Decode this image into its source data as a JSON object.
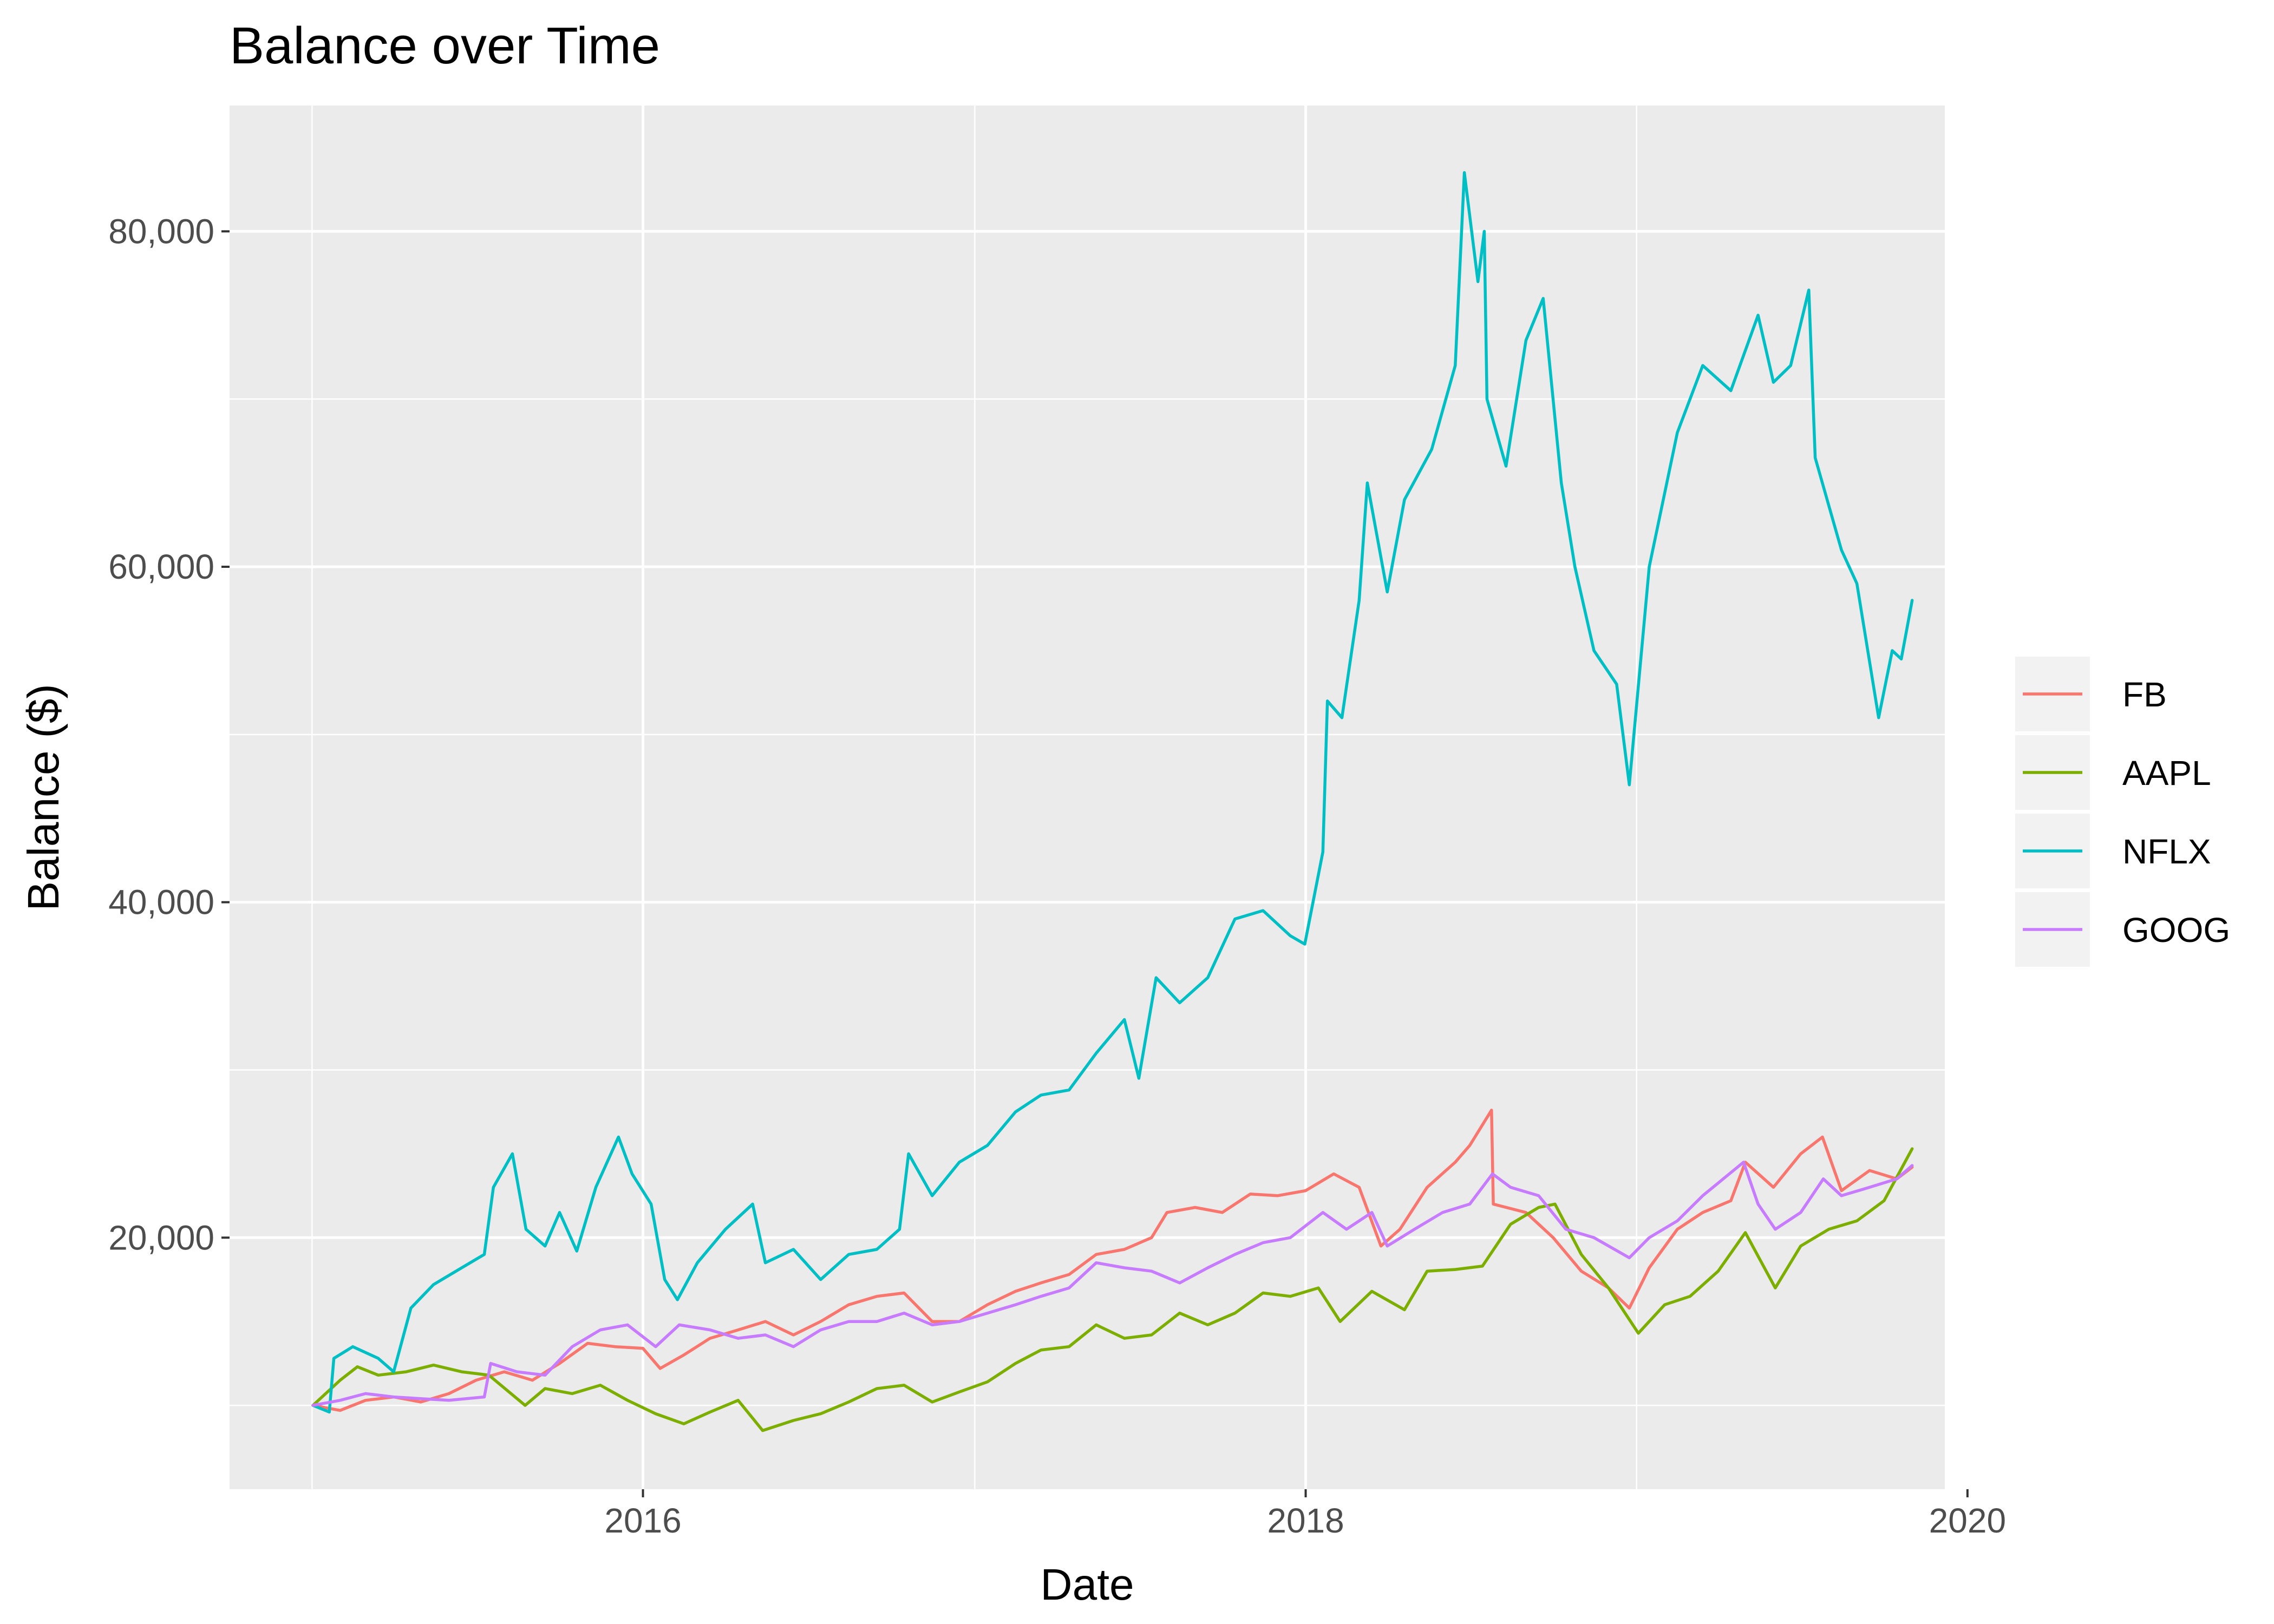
{
  "chart_data": {
    "type": "line",
    "title": "Balance over Time",
    "xlabel": "Date",
    "ylabel": "Balance ($)",
    "xlim": [
      "2014-10-02",
      "2019-12-07"
    ],
    "ylim": [
      5000,
      87500
    ],
    "x_ticks": [
      "2016-01-01",
      "2018-01-01",
      "2020-01-01"
    ],
    "x_tick_labels": [
      "2016",
      "2018",
      "2020"
    ],
    "y_ticks": [
      20000,
      40000,
      60000,
      80000
    ],
    "y_tick_labels": [
      "20,000",
      "40,000",
      "60,000",
      "80,000"
    ],
    "grid": true,
    "legend_position": "right",
    "series": [
      {
        "name": "FB",
        "color": "#F8766D",
        "points": [
          [
            "2015-01-02",
            10000
          ],
          [
            "2015-02-01",
            9700
          ],
          [
            "2015-03-01",
            10300
          ],
          [
            "2015-04-01",
            10500
          ],
          [
            "2015-05-01",
            10200
          ],
          [
            "2015-06-01",
            10700
          ],
          [
            "2015-07-01",
            11500
          ],
          [
            "2015-08-01",
            12000
          ],
          [
            "2015-09-01",
            11500
          ],
          [
            "2015-10-01",
            12500
          ],
          [
            "2015-11-01",
            13700
          ],
          [
            "2015-12-01",
            13500
          ],
          [
            "2016-01-01",
            13400
          ],
          [
            "2016-01-20",
            12200
          ],
          [
            "2016-02-15",
            13000
          ],
          [
            "2016-03-15",
            14000
          ],
          [
            "2016-04-15",
            14500
          ],
          [
            "2016-05-15",
            15000
          ],
          [
            "2016-06-15",
            14200
          ],
          [
            "2016-07-15",
            15000
          ],
          [
            "2016-08-15",
            16000
          ],
          [
            "2016-09-15",
            16500
          ],
          [
            "2016-10-15",
            16700
          ],
          [
            "2016-11-15",
            15000
          ],
          [
            "2016-12-15",
            15000
          ],
          [
            "2017-01-15",
            16000
          ],
          [
            "2017-02-15",
            16800
          ],
          [
            "2017-03-15",
            17300
          ],
          [
            "2017-04-15",
            17800
          ],
          [
            "2017-05-15",
            19000
          ],
          [
            "2017-06-15",
            19300
          ],
          [
            "2017-07-15",
            20000
          ],
          [
            "2017-08-01",
            21500
          ],
          [
            "2017-09-01",
            21800
          ],
          [
            "2017-10-01",
            21500
          ],
          [
            "2017-11-01",
            22600
          ],
          [
            "2017-12-01",
            22500
          ],
          [
            "2018-01-01",
            22800
          ],
          [
            "2018-02-01",
            23800
          ],
          [
            "2018-03-01",
            23000
          ],
          [
            "2018-03-25",
            19500
          ],
          [
            "2018-04-15",
            20500
          ],
          [
            "2018-05-15",
            23000
          ],
          [
            "2018-06-15",
            24500
          ],
          [
            "2018-07-01",
            25500
          ],
          [
            "2018-07-25",
            27600
          ],
          [
            "2018-07-27",
            22000
          ],
          [
            "2018-09-01",
            21500
          ],
          [
            "2018-10-01",
            20000
          ],
          [
            "2018-11-01",
            18000
          ],
          [
            "2018-12-01",
            17000
          ],
          [
            "2018-12-24",
            15800
          ],
          [
            "2019-01-15",
            18200
          ],
          [
            "2019-02-15",
            20500
          ],
          [
            "2019-03-15",
            21500
          ],
          [
            "2019-04-15",
            22200
          ],
          [
            "2019-05-01",
            24500
          ],
          [
            "2019-06-01",
            23000
          ],
          [
            "2019-07-01",
            25000
          ],
          [
            "2019-07-25",
            26000
          ],
          [
            "2019-08-15",
            22800
          ],
          [
            "2019-09-15",
            24000
          ],
          [
            "2019-10-15",
            23500
          ],
          [
            "2019-11-01",
            24200
          ]
        ]
      },
      {
        "name": "AAPL",
        "color": "#7CAE00",
        "points": [
          [
            "2015-01-02",
            10000
          ],
          [
            "2015-02-01",
            11500
          ],
          [
            "2015-02-20",
            12300
          ],
          [
            "2015-03-15",
            11800
          ],
          [
            "2015-04-15",
            12000
          ],
          [
            "2015-05-15",
            12400
          ],
          [
            "2015-06-15",
            12000
          ],
          [
            "2015-07-15",
            11800
          ],
          [
            "2015-08-24",
            10000
          ],
          [
            "2015-09-15",
            11000
          ],
          [
            "2015-10-15",
            10700
          ],
          [
            "2015-11-15",
            11200
          ],
          [
            "2015-12-15",
            10300
          ],
          [
            "2016-01-15",
            9500
          ],
          [
            "2016-02-15",
            8900
          ],
          [
            "2016-03-15",
            9600
          ],
          [
            "2016-04-15",
            10300
          ],
          [
            "2016-05-12",
            8500
          ],
          [
            "2016-06-15",
            9100
          ],
          [
            "2016-07-15",
            9500
          ],
          [
            "2016-08-15",
            10200
          ],
          [
            "2016-09-15",
            11000
          ],
          [
            "2016-10-15",
            11200
          ],
          [
            "2016-11-15",
            10200
          ],
          [
            "2016-12-15",
            10800
          ],
          [
            "2017-01-15",
            11400
          ],
          [
            "2017-02-15",
            12500
          ],
          [
            "2017-03-15",
            13300
          ],
          [
            "2017-04-15",
            13500
          ],
          [
            "2017-05-15",
            14800
          ],
          [
            "2017-06-15",
            14000
          ],
          [
            "2017-07-15",
            14200
          ],
          [
            "2017-08-15",
            15500
          ],
          [
            "2017-09-15",
            14800
          ],
          [
            "2017-10-15",
            15500
          ],
          [
            "2017-11-15",
            16700
          ],
          [
            "2017-12-15",
            16500
          ],
          [
            "2018-01-15",
            17000
          ],
          [
            "2018-02-08",
            15000
          ],
          [
            "2018-03-15",
            16800
          ],
          [
            "2018-04-20",
            15700
          ],
          [
            "2018-05-15",
            18000
          ],
          [
            "2018-06-15",
            18100
          ],
          [
            "2018-07-15",
            18300
          ],
          [
            "2018-08-15",
            20800
          ],
          [
            "2018-09-15",
            21800
          ],
          [
            "2018-10-03",
            22000
          ],
          [
            "2018-11-01",
            19000
          ],
          [
            "2018-12-01",
            17000
          ],
          [
            "2019-01-03",
            14300
          ],
          [
            "2019-02-01",
            16000
          ],
          [
            "2019-03-01",
            16500
          ],
          [
            "2019-04-01",
            18000
          ],
          [
            "2019-05-01",
            20300
          ],
          [
            "2019-06-03",
            17000
          ],
          [
            "2019-07-01",
            19500
          ],
          [
            "2019-08-01",
            20500
          ],
          [
            "2019-09-01",
            21000
          ],
          [
            "2019-10-01",
            22200
          ],
          [
            "2019-11-01",
            25300
          ]
        ]
      },
      {
        "name": "NFLX",
        "color": "#00BFC4",
        "points": [
          [
            "2015-01-02",
            10000
          ],
          [
            "2015-01-20",
            9600
          ],
          [
            "2015-01-25",
            12800
          ],
          [
            "2015-02-15",
            13500
          ],
          [
            "2015-03-15",
            12800
          ],
          [
            "2015-04-01",
            12000
          ],
          [
            "2015-04-20",
            15800
          ],
          [
            "2015-05-15",
            17200
          ],
          [
            "2015-06-15",
            18200
          ],
          [
            "2015-07-10",
            19000
          ],
          [
            "2015-07-20",
            23000
          ],
          [
            "2015-08-10",
            25000
          ],
          [
            "2015-08-25",
            20500
          ],
          [
            "2015-09-15",
            19500
          ],
          [
            "2015-10-01",
            21500
          ],
          [
            "2015-10-20",
            19200
          ],
          [
            "2015-11-10",
            23000
          ],
          [
            "2015-12-05",
            26000
          ],
          [
            "2015-12-20",
            23800
          ],
          [
            "2016-01-10",
            22000
          ],
          [
            "2016-01-25",
            17500
          ],
          [
            "2016-02-08",
            16300
          ],
          [
            "2016-03-01",
            18500
          ],
          [
            "2016-04-01",
            20500
          ],
          [
            "2016-05-01",
            22000
          ],
          [
            "2016-05-15",
            18500
          ],
          [
            "2016-06-15",
            19300
          ],
          [
            "2016-07-15",
            17500
          ],
          [
            "2016-08-15",
            19000
          ],
          [
            "2016-09-15",
            19300
          ],
          [
            "2016-10-10",
            20500
          ],
          [
            "2016-10-20",
            25000
          ],
          [
            "2016-11-15",
            22500
          ],
          [
            "2016-12-15",
            24500
          ],
          [
            "2017-01-15",
            25500
          ],
          [
            "2017-02-15",
            27500
          ],
          [
            "2017-03-15",
            28500
          ],
          [
            "2017-04-15",
            28800
          ],
          [
            "2017-05-15",
            31000
          ],
          [
            "2017-06-15",
            33000
          ],
          [
            "2017-07-01",
            29500
          ],
          [
            "2017-07-20",
            35500
          ],
          [
            "2017-08-15",
            34000
          ],
          [
            "2017-09-15",
            35500
          ],
          [
            "2017-10-15",
            39000
          ],
          [
            "2017-11-15",
            39500
          ],
          [
            "2017-12-15",
            38000
          ],
          [
            "2017-12-31",
            37500
          ],
          [
            "2018-01-20",
            43000
          ],
          [
            "2018-01-25",
            52000
          ],
          [
            "2018-02-10",
            51000
          ],
          [
            "2018-03-01",
            58000
          ],
          [
            "2018-03-10",
            65000
          ],
          [
            "2018-04-01",
            58500
          ],
          [
            "2018-04-20",
            64000
          ],
          [
            "2018-05-20",
            67000
          ],
          [
            "2018-06-15",
            72000
          ],
          [
            "2018-06-25",
            83500
          ],
          [
            "2018-07-10",
            77000
          ],
          [
            "2018-07-17",
            80000
          ],
          [
            "2018-07-20",
            70000
          ],
          [
            "2018-08-10",
            66000
          ],
          [
            "2018-09-01",
            73500
          ],
          [
            "2018-09-20",
            76000
          ],
          [
            "2018-10-10",
            65000
          ],
          [
            "2018-10-25",
            60000
          ],
          [
            "2018-11-15",
            55000
          ],
          [
            "2018-12-10",
            53000
          ],
          [
            "2018-12-24",
            47000
          ],
          [
            "2019-01-15",
            60000
          ],
          [
            "2019-02-15",
            68000
          ],
          [
            "2019-03-15",
            72000
          ],
          [
            "2019-04-15",
            70500
          ],
          [
            "2019-05-15",
            75000
          ],
          [
            "2019-06-01",
            71000
          ],
          [
            "2019-06-20",
            72000
          ],
          [
            "2019-07-10",
            76500
          ],
          [
            "2019-07-17",
            66500
          ],
          [
            "2019-08-15",
            61000
          ],
          [
            "2019-09-01",
            59000
          ],
          [
            "2019-09-25",
            51000
          ],
          [
            "2019-10-10",
            55000
          ],
          [
            "2019-10-20",
            54500
          ],
          [
            "2019-11-01",
            58000
          ]
        ]
      },
      {
        "name": "GOOG",
        "color": "#C77CFF",
        "points": [
          [
            "2015-01-02",
            10000
          ],
          [
            "2015-02-01",
            10300
          ],
          [
            "2015-03-01",
            10700
          ],
          [
            "2015-04-01",
            10500
          ],
          [
            "2015-05-01",
            10400
          ],
          [
            "2015-06-01",
            10300
          ],
          [
            "2015-07-10",
            10500
          ],
          [
            "2015-07-17",
            12500
          ],
          [
            "2015-08-15",
            12000
          ],
          [
            "2015-09-15",
            11800
          ],
          [
            "2015-10-15",
            13500
          ],
          [
            "2015-11-15",
            14500
          ],
          [
            "2015-12-15",
            14800
          ],
          [
            "2016-01-15",
            13500
          ],
          [
            "2016-02-10",
            14800
          ],
          [
            "2016-03-15",
            14500
          ],
          [
            "2016-04-15",
            14000
          ],
          [
            "2016-05-15",
            14200
          ],
          [
            "2016-06-15",
            13500
          ],
          [
            "2016-07-15",
            14500
          ],
          [
            "2016-08-15",
            15000
          ],
          [
            "2016-09-15",
            15000
          ],
          [
            "2016-10-15",
            15500
          ],
          [
            "2016-11-15",
            14800
          ],
          [
            "2016-12-15",
            15000
          ],
          [
            "2017-01-15",
            15500
          ],
          [
            "2017-02-15",
            16000
          ],
          [
            "2017-03-15",
            16500
          ],
          [
            "2017-04-15",
            17000
          ],
          [
            "2017-05-15",
            18500
          ],
          [
            "2017-06-15",
            18200
          ],
          [
            "2017-07-15",
            18000
          ],
          [
            "2017-08-15",
            17300
          ],
          [
            "2017-09-15",
            18200
          ],
          [
            "2017-10-15",
            19000
          ],
          [
            "2017-11-15",
            19700
          ],
          [
            "2017-12-15",
            20000
          ],
          [
            "2018-01-20",
            21500
          ],
          [
            "2018-02-15",
            20500
          ],
          [
            "2018-03-15",
            21500
          ],
          [
            "2018-04-01",
            19500
          ],
          [
            "2018-05-01",
            20500
          ],
          [
            "2018-06-01",
            21500
          ],
          [
            "2018-07-01",
            22000
          ],
          [
            "2018-07-26",
            23800
          ],
          [
            "2018-08-15",
            23000
          ],
          [
            "2018-09-15",
            22500
          ],
          [
            "2018-10-15",
            20500
          ],
          [
            "2018-11-15",
            20000
          ],
          [
            "2018-12-24",
            18800
          ],
          [
            "2019-01-15",
            20000
          ],
          [
            "2019-02-15",
            21000
          ],
          [
            "2019-03-15",
            22500
          ],
          [
            "2019-04-29",
            24500
          ],
          [
            "2019-05-15",
            22000
          ],
          [
            "2019-06-03",
            20500
          ],
          [
            "2019-07-01",
            21500
          ],
          [
            "2019-07-26",
            23500
          ],
          [
            "2019-08-15",
            22500
          ],
          [
            "2019-09-15",
            23000
          ],
          [
            "2019-10-15",
            23500
          ],
          [
            "2019-11-01",
            24300
          ]
        ]
      }
    ]
  }
}
